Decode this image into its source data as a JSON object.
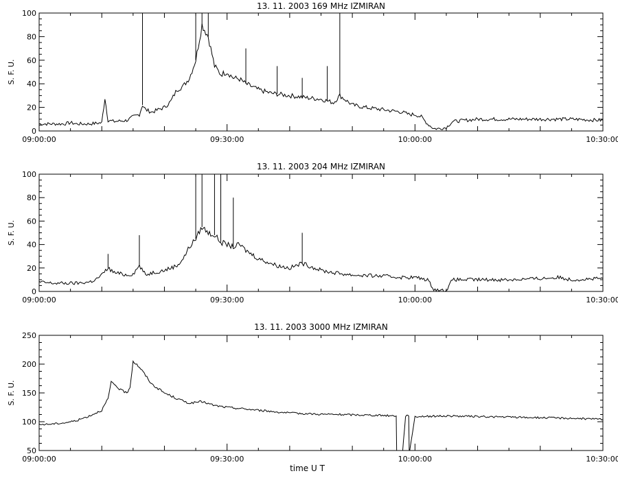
{
  "chart_data": [
    {
      "type": "line",
      "title": "13.  11.  2003    169 MHz    IZMIRAN",
      "xlabel": "",
      "ylabel": "S. F. U.",
      "x_unit": "UT time",
      "xlim": [
        "09:00:00",
        "10:30:00"
      ],
      "ylim": [
        0,
        100
      ],
      "yticks": [
        0,
        20,
        40,
        60,
        80,
        100
      ],
      "xtick_labels": [
        "09:00:00",
        "09:30:00",
        "10:00:00",
        "10:30:00"
      ],
      "grid": false,
      "series": [
        {
          "x": [
            "09:00:00",
            "09:02:00",
            "09:04:00",
            "09:05:00",
            "09:06:00",
            "09:08:00",
            "09:10:00",
            "09:10:30",
            "09:11:00",
            "09:12:00",
            "09:14:00",
            "09:15:00",
            "09:16:00",
            "09:16:30",
            "09:17:00",
            "09:18:00",
            "09:19:00",
            "09:20:00",
            "09:21:00",
            "09:22:00",
            "09:23:00",
            "09:24:00",
            "09:25:00",
            "09:26:00",
            "09:27:00",
            "09:28:00",
            "09:29:00",
            "09:30:00",
            "09:31:00",
            "09:32:00",
            "09:33:00",
            "09:35:00",
            "09:37:00",
            "09:40:00",
            "09:43:00",
            "09:45:00",
            "09:47:00",
            "09:48:00",
            "09:50:00",
            "09:52:00",
            "09:55:00",
            "09:58:00",
            "09:59:00",
            "10:00:00",
            "10:01:00",
            "10:02:00",
            "10:03:00",
            "10:04:00",
            "10:05:00",
            "10:06:00",
            "10:10:00",
            "10:15:00",
            "10:20:00",
            "10:25:00",
            "10:30:00"
          ],
          "y": [
            6,
            6,
            6,
            7,
            6,
            6,
            7,
            28,
            9,
            8,
            9,
            12,
            14,
            22,
            18,
            16,
            18,
            20,
            25,
            35,
            38,
            45,
            60,
            90,
            80,
            55,
            48,
            50,
            45,
            44,
            40,
            35,
            32,
            30,
            28,
            27,
            24,
            30,
            22,
            20,
            18,
            16,
            14,
            14,
            12,
            6,
            2,
            2,
            3,
            8,
            10,
            10,
            10,
            10,
            9
          ]
        }
      ],
      "spikes": [
        {
          "x": "09:16:30",
          "y": 100
        },
        {
          "x": "09:25:00",
          "y": 100
        },
        {
          "x": "09:26:00",
          "y": 100
        },
        {
          "x": "09:27:00",
          "y": 100
        },
        {
          "x": "09:48:00",
          "y": 100
        },
        {
          "x": "09:33:00",
          "y": 70
        },
        {
          "x": "09:46:00",
          "y": 55
        },
        {
          "x": "09:42:00",
          "y": 45
        },
        {
          "x": "09:38:00",
          "y": 55
        }
      ]
    },
    {
      "type": "line",
      "title": "13.  11.  2003    204 MHz    IZMIRAN",
      "xlabel": "",
      "ylabel": "S. F. U.",
      "x_unit": "UT time",
      "xlim": [
        "09:00:00",
        "10:30:00"
      ],
      "ylim": [
        0,
        100
      ],
      "yticks": [
        0,
        20,
        40,
        60,
        80,
        100
      ],
      "xtick_labels": [
        "09:00:00",
        "09:30:00",
        "10:00:00",
        "10:30:00"
      ],
      "grid": false,
      "series": [
        {
          "x": [
            "09:00:00",
            "09:02:00",
            "09:04:00",
            "09:06:00",
            "09:08:00",
            "09:09:00",
            "09:10:00",
            "09:11:00",
            "09:12:00",
            "09:14:00",
            "09:15:00",
            "09:16:00",
            "09:17:00",
            "09:18:00",
            "09:20:00",
            "09:22:00",
            "09:23:00",
            "09:24:00",
            "09:25:00",
            "09:26:00",
            "09:27:00",
            "09:28:00",
            "09:29:00",
            "09:30:00",
            "09:31:00",
            "09:32:00",
            "09:33:00",
            "09:35:00",
            "09:38:00",
            "09:40:00",
            "09:42:00",
            "09:43:00",
            "09:45:00",
            "09:47:00",
            "09:50:00",
            "09:55:00",
            "09:58:00",
            "10:00:00",
            "10:01:00",
            "10:02:00",
            "10:03:00",
            "10:04:00",
            "10:05:00",
            "10:06:00",
            "10:10:00",
            "10:15:00",
            "10:20:00",
            "10:23:00",
            "10:25:00",
            "10:30:00"
          ],
          "y": [
            8,
            7,
            7,
            7,
            8,
            10,
            14,
            20,
            16,
            14,
            15,
            22,
            14,
            16,
            18,
            22,
            28,
            38,
            45,
            55,
            50,
            48,
            42,
            40,
            38,
            40,
            35,
            28,
            22,
            20,
            24,
            22,
            18,
            16,
            14,
            13,
            12,
            12,
            11,
            10,
            2,
            1,
            1,
            10,
            10,
            10,
            11,
            12,
            10,
            11
          ]
        }
      ],
      "spikes": [
        {
          "x": "09:16:00",
          "y": 48
        },
        {
          "x": "09:25:00",
          "y": 100
        },
        {
          "x": "09:26:00",
          "y": 100
        },
        {
          "x": "09:28:00",
          "y": 100
        },
        {
          "x": "09:29:00",
          "y": 100
        },
        {
          "x": "09:31:00",
          "y": 80
        },
        {
          "x": "09:42:00",
          "y": 50
        },
        {
          "x": "09:11:00",
          "y": 32
        }
      ]
    },
    {
      "type": "line",
      "title": "13.  11.  2003    3000 MHz    IZMIRAN",
      "xlabel": "time  U T",
      "ylabel": "S. F. U.",
      "x_unit": "UT time",
      "xlim": [
        "09:00:00",
        "10:30:00"
      ],
      "ylim": [
        50,
        250
      ],
      "yticks": [
        50,
        100,
        150,
        200,
        250
      ],
      "xtick_labels": [
        "09:00:00",
        "09:30:00",
        "10:00:00",
        "10:30:00"
      ],
      "grid": false,
      "series": [
        {
          "x": [
            "09:00:00",
            "09:02:00",
            "09:04:00",
            "09:06:00",
            "09:08:00",
            "09:10:00",
            "09:11:00",
            "09:11:30",
            "09:12:00",
            "09:13:00",
            "09:14:00",
            "09:14:30",
            "09:15:00",
            "09:16:00",
            "09:17:00",
            "09:18:00",
            "09:20:00",
            "09:22:00",
            "09:24:00",
            "09:26:00",
            "09:28:00",
            "09:30:00",
            "09:35:00",
            "09:40:00",
            "09:45:00",
            "09:50:00",
            "09:55:00",
            "09:57:00",
            "09:57:05",
            "09:58:00",
            "09:58:30",
            "09:59:00",
            "09:59:05",
            "10:00:00",
            "10:05:00",
            "10:10:00",
            "10:15:00",
            "10:20:00",
            "10:25:00",
            "10:30:00"
          ],
          "y": [
            95,
            96,
            98,
            102,
            110,
            120,
            140,
            168,
            165,
            155,
            150,
            160,
            205,
            195,
            180,
            165,
            150,
            140,
            132,
            135,
            128,
            125,
            120,
            115,
            113,
            112,
            111,
            110,
            45,
            45,
            110,
            110,
            45,
            109,
            110,
            109,
            108,
            107,
            106,
            104
          ]
        }
      ]
    }
  ]
}
